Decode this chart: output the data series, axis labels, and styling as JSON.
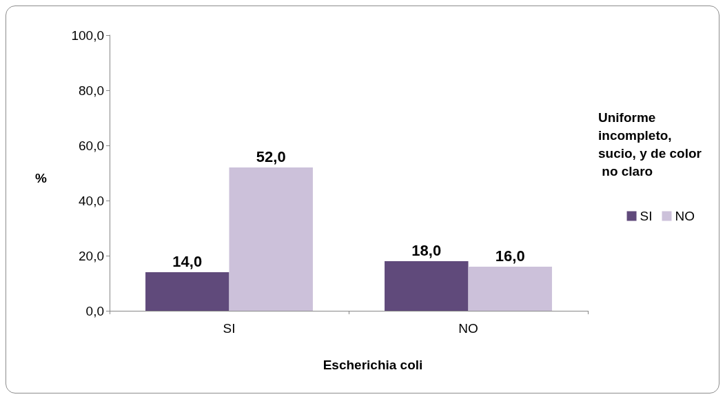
{
  "chart_data": {
    "type": "bar",
    "xlabel": "Escherichia coli",
    "ylabel": "%",
    "legend_title": "Uniforme incompleto, sucio, y de color no claro",
    "categories": [
      "SI",
      "NO"
    ],
    "series": [
      {
        "name": "SI",
        "color": "#604a7b",
        "values": [
          14,
          18
        ],
        "value_labels": [
          "14,0",
          "18,0"
        ]
      },
      {
        "name": "NO",
        "color": "#ccc1da",
        "values": [
          52,
          16
        ],
        "value_labels": [
          "52,0",
          "16,0"
        ]
      }
    ],
    "ylim": [
      0,
      100
    ],
    "yticks": [
      {
        "value": 0,
        "label": "0,0"
      },
      {
        "value": 20,
        "label": "20,0"
      },
      {
        "value": 40,
        "label": "40,0"
      },
      {
        "value": 60,
        "label": "60,0"
      },
      {
        "value": 80,
        "label": "80,0"
      },
      {
        "value": 100,
        "label": "100,0"
      }
    ],
    "grid": false,
    "legend": "right"
  }
}
